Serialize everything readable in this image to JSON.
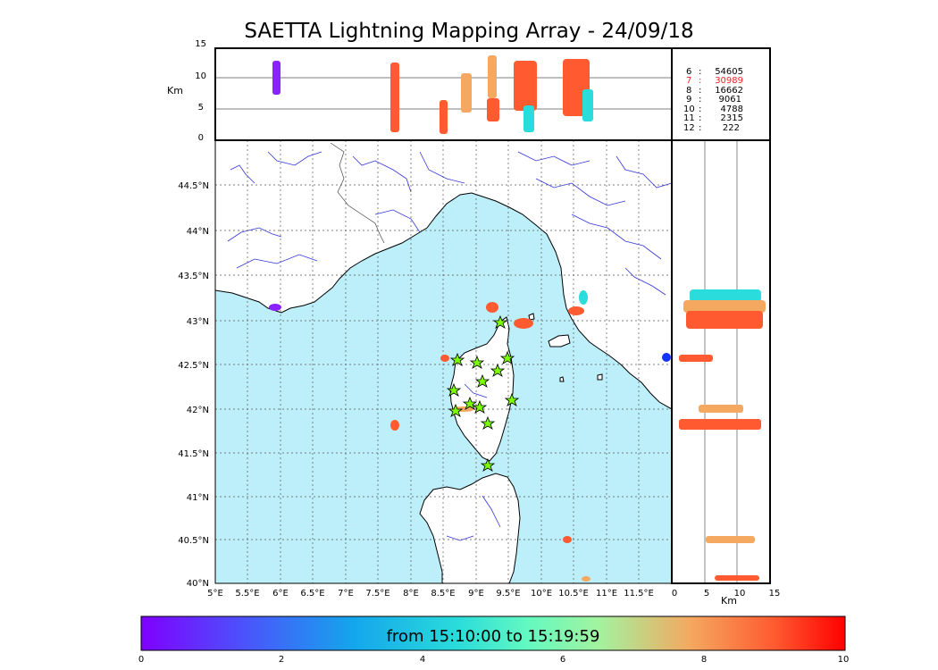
{
  "title": "SAETTA Lightning Mapping Array - 24/09/18",
  "altitude_panel": {
    "ylabel": "Km",
    "yticks": [
      "15",
      "10",
      "5",
      "0"
    ]
  },
  "side_panel": {
    "xlabel": "Km",
    "xticks": [
      "0",
      "5",
      "10",
      "15"
    ]
  },
  "map": {
    "lon_ticks": [
      "5°E",
      "5.5°E",
      "6°E",
      "6.5°E",
      "7°E",
      "7.5°E",
      "8°E",
      "8.5°E",
      "9°E",
      "9.5°E",
      "10°E",
      "10.5°E",
      "11°E",
      "11.5°E"
    ],
    "lat_ticks": [
      "44.5°N",
      "44°N",
      "43.5°N",
      "43°N",
      "42.5°N",
      "42°N",
      "41.5°N",
      "41°N",
      "40.5°N",
      "40°N"
    ],
    "sea_color": "#bdeffa",
    "land_color": "#ffffff",
    "river_color": "#3333dd",
    "station_marker": "lime star",
    "station_count": 13
  },
  "counts": [
    {
      "label": "6",
      "value": "54605",
      "color": "#000000"
    },
    {
      "label": "7",
      "value": "30989",
      "color": "#ff2222"
    },
    {
      "label": "8",
      "value": "16662",
      "color": "#000000"
    },
    {
      "label": "9",
      "value": "9061",
      "color": "#000000"
    },
    {
      "label": "10",
      "value": "4788",
      "color": "#000000"
    },
    {
      "label": "11",
      "value": "2315",
      "color": "#000000"
    },
    {
      "label": "12",
      "value": "222",
      "color": "#000000"
    }
  ],
  "colorbar": {
    "label": "from 15:10:00 to 15:19:59",
    "ticks": [
      "0",
      "2",
      "4",
      "6",
      "8",
      "10"
    ],
    "colormap": "rainbow",
    "range": [
      0,
      10
    ]
  }
}
